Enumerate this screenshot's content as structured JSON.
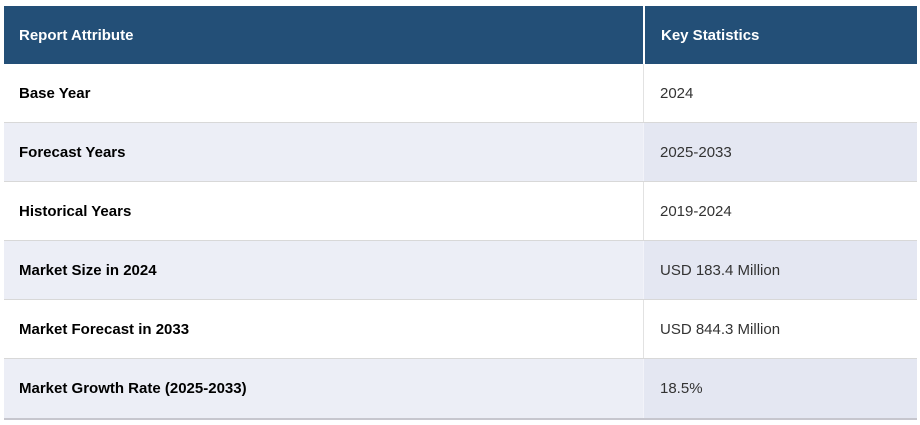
{
  "chart_data": {
    "type": "table",
    "columns": [
      "Report Attribute",
      "Key Statistics"
    ],
    "rows": [
      [
        "Base Year",
        "2024"
      ],
      [
        "Forecast Years",
        "2025-2033"
      ],
      [
        "Historical Years",
        "2019-2024"
      ],
      [
        "Market Size in 2024",
        "USD 183.4 Million"
      ],
      [
        "Market Forecast in 2033",
        "USD 844.3 Million"
      ],
      [
        "Market Growth Rate (2025-2033)",
        "18.5%"
      ]
    ]
  },
  "colors": {
    "header_bg": "#234F77",
    "header_text": "#FFFFFF",
    "stripe_left": "#ECEEF6",
    "stripe_right": "#E4E7F2",
    "row_border": "#D8D8D8",
    "column_divider": "#E2E2E2",
    "bottom_border": "#C6C6CE"
  }
}
